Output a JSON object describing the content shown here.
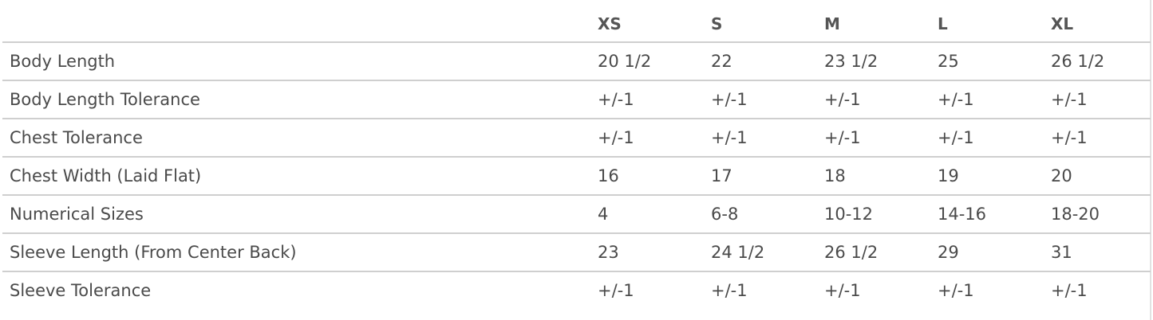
{
  "columns": [
    "",
    "XS",
    "S",
    "M",
    "L",
    "XL"
  ],
  "rows": [
    {
      "label": "Body Length",
      "values": [
        "20 1/2",
        "22",
        "23 1/2",
        "25",
        "26 1/2"
      ]
    },
    {
      "label": "Body Length Tolerance",
      "values": [
        "+/-1",
        "+/-1",
        "+/-1",
        "+/-1",
        "+/-1"
      ]
    },
    {
      "label": "Chest Tolerance",
      "values": [
        "+/-1",
        "+/-1",
        "+/-1",
        "+/-1",
        "+/-1"
      ]
    },
    {
      "label": "Chest Width (Laid Flat)",
      "values": [
        "16",
        "17",
        "18",
        "19",
        "20"
      ]
    },
    {
      "label": "Numerical Sizes",
      "values": [
        "4",
        "6-8",
        "10-12",
        "14-16",
        "18-20"
      ]
    },
    {
      "label": "Sleeve Length (From Center Back)",
      "values": [
        "23",
        "24 1/2",
        "26 1/2",
        "29",
        "31"
      ]
    },
    {
      "label": "Sleeve Tolerance",
      "values": [
        "+/-1",
        "+/-1",
        "+/-1",
        "+/-1",
        "+/-1"
      ]
    }
  ]
}
